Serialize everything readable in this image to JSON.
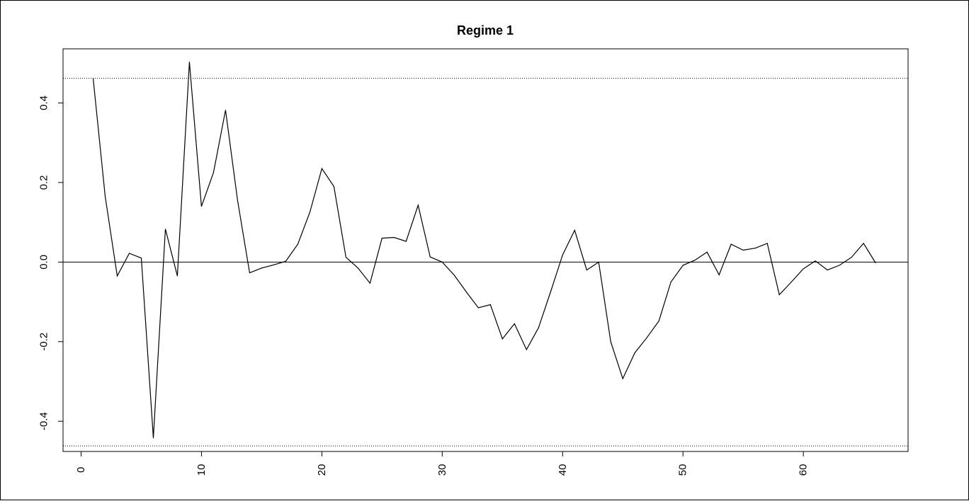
{
  "chart_data": {
    "type": "line",
    "title": "Regime 1",
    "xlabel": "",
    "ylabel": "",
    "xlim": [
      -1.5,
      68.7
    ],
    "ylim": [
      -0.476,
      0.536
    ],
    "x_ticks": [
      0,
      10,
      20,
      30,
      40,
      50,
      60
    ],
    "x_tick_labels": [
      "0",
      "10",
      "20",
      "30",
      "40",
      "50",
      "60"
    ],
    "y_ticks": [
      -0.4,
      -0.2,
      0.0,
      0.2,
      0.4
    ],
    "y_tick_labels": [
      "-0.4",
      "-0.2",
      "0.0",
      "0.2",
      "0.4"
    ],
    "grid": false,
    "legend": "none",
    "line_color": "#000000",
    "reference_lines": [
      {
        "y": 0.0,
        "style": "solid"
      },
      {
        "y": 0.462,
        "style": "dotted"
      },
      {
        "y": -0.462,
        "style": "dotted"
      }
    ],
    "series": [
      {
        "x": [
          1,
          2,
          3,
          4,
          5,
          6,
          7,
          8,
          9,
          10,
          11,
          12,
          13,
          14,
          15,
          16,
          17,
          18,
          19,
          20,
          21,
          22,
          23,
          24,
          25,
          26,
          27,
          28,
          29,
          30,
          31,
          32,
          33,
          34,
          35,
          36,
          37,
          38,
          39,
          40,
          41,
          42,
          43,
          44,
          45,
          46,
          47,
          48,
          49,
          50,
          51,
          52,
          53,
          54,
          55,
          56,
          57,
          58,
          59,
          60,
          61,
          62,
          63,
          64,
          65,
          66
        ],
        "values": [
          0.462,
          0.165,
          -0.035,
          0.022,
          0.01,
          -0.442,
          0.083,
          -0.035,
          0.503,
          0.14,
          0.225,
          0.382,
          0.155,
          -0.027,
          -0.015,
          -0.007,
          0.002,
          0.045,
          0.125,
          0.235,
          0.19,
          0.012,
          -0.015,
          -0.053,
          0.06,
          0.062,
          0.052,
          0.143,
          0.013,
          0.0,
          -0.033,
          -0.075,
          -0.115,
          -0.107,
          -0.193,
          -0.155,
          -0.22,
          -0.165,
          -0.075,
          0.018,
          0.08,
          -0.02,
          0.0,
          -0.2,
          -0.293,
          -0.228,
          -0.19,
          -0.148,
          -0.05,
          -0.008,
          0.005,
          0.025,
          -0.032,
          0.045,
          0.03,
          0.035,
          0.047,
          -0.082,
          -0.05,
          -0.017,
          0.003,
          -0.02,
          -0.008,
          0.012,
          0.047,
          -0.002
        ]
      }
    ]
  }
}
